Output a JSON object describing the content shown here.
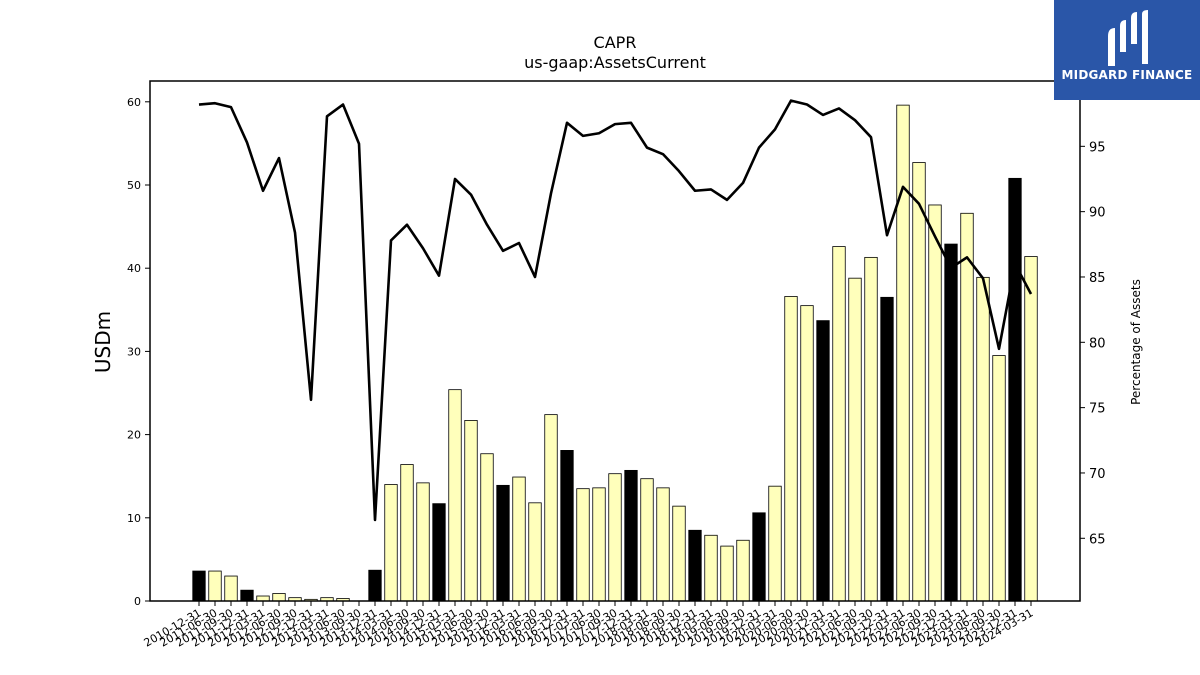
{
  "logo": {
    "text": "MIDGARD FINANCE",
    "icon": "midgard-logo-icon",
    "bg_color": "#2a56a8"
  },
  "chart_data": {
    "type": "bar",
    "title": "CAPR",
    "subtitle": "us-gaap:AssetsCurrent",
    "ylabel": "USDm",
    "y2label": "Percentage of Assets",
    "ylim": [
      0,
      62.5
    ],
    "y2lim": [
      60.2,
      100.0
    ],
    "yticks": [
      0,
      10,
      20,
      30,
      40,
      50,
      60
    ],
    "y2ticks": [
      65,
      70,
      75,
      80,
      85,
      90,
      95
    ],
    "grid": false,
    "bar_color_normal": "#ffffbb",
    "bar_color_highlight": "#000000",
    "line_color": "#000000",
    "categories": [
      "2010-12-31",
      "2011-06-30",
      "2011-09-30",
      "2011-12-31",
      "2012-03-31",
      "2012-06-30",
      "2012-09-30",
      "2012-12-31",
      "2013-03-31",
      "2013-06-30",
      "2013-09-30",
      "2013-12-31",
      "2014-03-31",
      "2014-06-30",
      "2014-09-30",
      "2014-12-31",
      "2015-03-31",
      "2015-06-30",
      "2015-09-30",
      "2015-12-31",
      "2016-03-31",
      "2016-06-30",
      "2016-09-30",
      "2016-12-31",
      "2017-03-31",
      "2017-06-30",
      "2017-09-30",
      "2017-12-31",
      "2018-03-31",
      "2018-06-30",
      "2018-09-30",
      "2018-12-31",
      "2019-03-31",
      "2019-06-30",
      "2019-09-30",
      "2019-12-31",
      "2020-03-31",
      "2020-06-30",
      "2020-09-30",
      "2020-12-31",
      "2021-03-31",
      "2021-06-30",
      "2021-09-30",
      "2021-12-31",
      "2022-03-31",
      "2022-06-30",
      "2022-09-30",
      "2022-12-31",
      "2023-03-31",
      "2023-06-30",
      "2023-09-30",
      "2023-12-31",
      "2024-03-31"
    ],
    "series": [
      {
        "kind": "bar",
        "values": [
          3.6,
          3.6,
          3.0,
          1.3,
          0.6,
          0.9,
          0.4,
          0.2,
          0.4,
          0.3,
          0.0,
          3.7,
          14.0,
          16.4,
          14.2,
          11.7,
          25.4,
          21.7,
          17.7,
          13.9,
          14.9,
          11.8,
          22.4,
          18.1,
          13.5,
          13.6,
          15.3,
          15.7,
          14.7,
          13.6,
          11.4,
          8.5,
          7.9,
          6.6,
          7.3,
          10.6,
          13.8,
          36.6,
          35.5,
          33.7,
          42.6,
          38.8,
          41.3,
          36.5,
          59.6,
          52.7,
          47.6,
          42.9,
          46.6,
          38.9,
          29.5,
          50.8,
          41.4
        ],
        "highlight": [
          1,
          0,
          0,
          1,
          0,
          0,
          0,
          0,
          0,
          0,
          1,
          1,
          0,
          0,
          0,
          1,
          0,
          0,
          0,
          1,
          0,
          0,
          0,
          1,
          0,
          0,
          0,
          1,
          0,
          0,
          0,
          1,
          0,
          0,
          0,
          1,
          0,
          0,
          0,
          1,
          0,
          0,
          0,
          1,
          0,
          0,
          0,
          1,
          0,
          0,
          0,
          1,
          0
        ]
      },
      {
        "kind": "line",
        "axis": "right",
        "values": [
          98.2,
          98.3,
          98.0,
          95.3,
          91.6,
          94.1,
          88.4,
          75.6,
          97.3,
          98.2,
          95.2,
          66.4,
          87.8,
          89.0,
          87.2,
          85.1,
          92.5,
          91.3,
          89.0,
          87.0,
          87.6,
          85.0,
          91.4,
          96.8,
          95.8,
          96.0,
          96.7,
          96.8,
          94.9,
          94.4,
          93.1,
          91.6,
          91.7,
          90.9,
          92.2,
          94.9,
          96.3,
          98.5,
          98.2,
          97.4,
          97.9,
          97.0,
          95.7,
          88.2,
          91.9,
          90.6,
          88.1,
          85.7,
          86.5,
          84.9,
          79.5,
          86.0,
          83.7
        ]
      }
    ]
  }
}
